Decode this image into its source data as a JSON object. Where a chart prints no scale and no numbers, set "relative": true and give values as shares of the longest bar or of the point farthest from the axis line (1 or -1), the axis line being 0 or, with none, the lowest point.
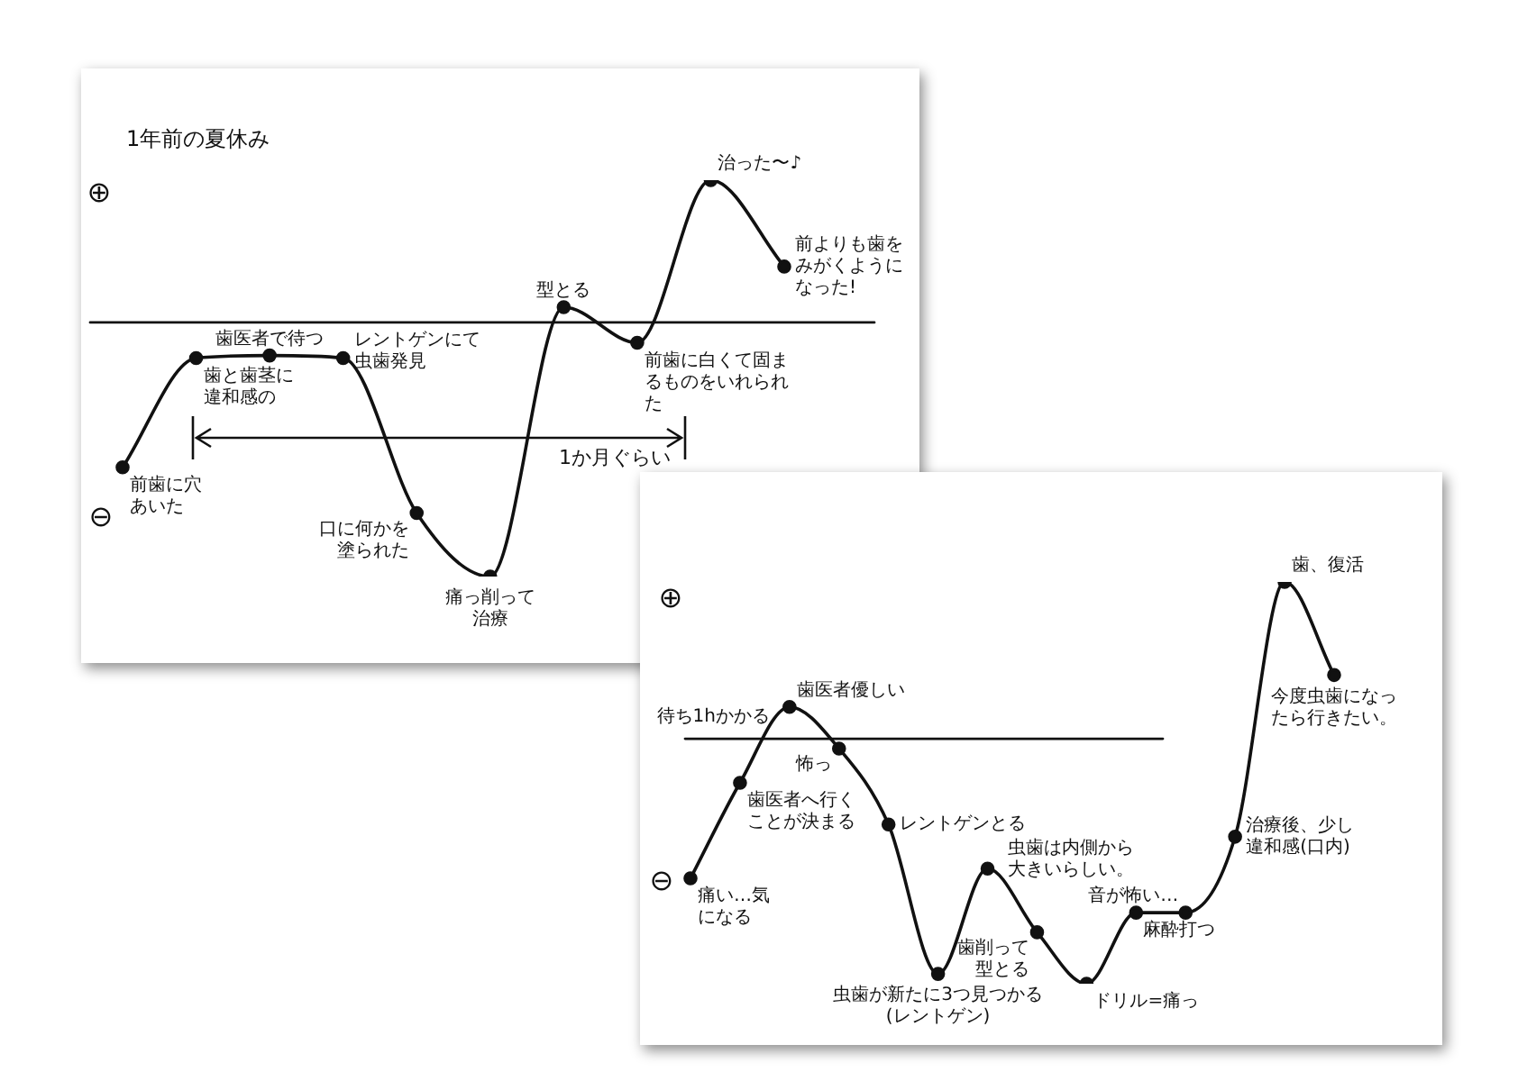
{
  "chart_data": [
    {
      "type": "line",
      "title": "1年前の夏休み",
      "relative": true,
      "marker": "circle",
      "categories": [
        null,
        null,
        null,
        null,
        null,
        null,
        null,
        null,
        null,
        null
      ],
      "series": [
        {
          "color": "#111111",
          "values": [
            -0.57,
            -0.14,
            -0.13,
            -0.14,
            -0.75,
            -1,
            0.06,
            -0.08,
            0.56,
            0.22
          ]
        }
      ],
      "ref_lines": [
        {
          "axis": "y",
          "value": 0,
          "color": "#111111"
        }
      ],
      "annotations": [
        "⊕",
        "⊖",
        "1か月ぐらい",
        "前歯に穴あいた",
        "歯と歯茎に違和感の",
        "歯医者で待つ",
        "レントゲンにて虫歯発見",
        "口に何かを塗られた",
        "痛っ削って治療",
        "型とる",
        "前歯に白くて固まるものをいれられた",
        "治った〜♪",
        "前よりも歯をみがくようになった!"
      ]
    },
    {
      "type": "line",
      "relative": true,
      "marker": "circle",
      "categories": [
        null,
        null,
        null,
        null,
        null,
        null,
        null,
        null,
        null,
        null,
        null,
        null,
        null,
        null
      ],
      "series": [
        {
          "color": "#111111",
          "values": [
            -0.57,
            -0.18,
            0.13,
            -0.04,
            -0.35,
            -0.96,
            -0.53,
            -0.79,
            -1,
            -0.71,
            -0.71,
            -0.4,
            0.64,
            0.26
          ]
        }
      ],
      "ref_lines": [
        {
          "axis": "y",
          "value": 0,
          "color": "#111111"
        }
      ],
      "annotations": [
        "⊕",
        "⊖",
        "待ち1hかかる",
        "痛い…気になる",
        "歯医者へ行くことが決まる",
        "歯医者優しい",
        "怖っ",
        "レントゲンとる",
        "虫歯が新たに3つ見つかる(レントゲン)",
        "虫歯は内側から大きいらしい。",
        "歯削って型とる",
        "ドリル=痛っ",
        "麻酔打つ",
        "音が怖い…",
        "治療後、少し違和感(口内)",
        "歯、復活",
        "今度虫歯になったら行きたい。"
      ]
    }
  ]
}
